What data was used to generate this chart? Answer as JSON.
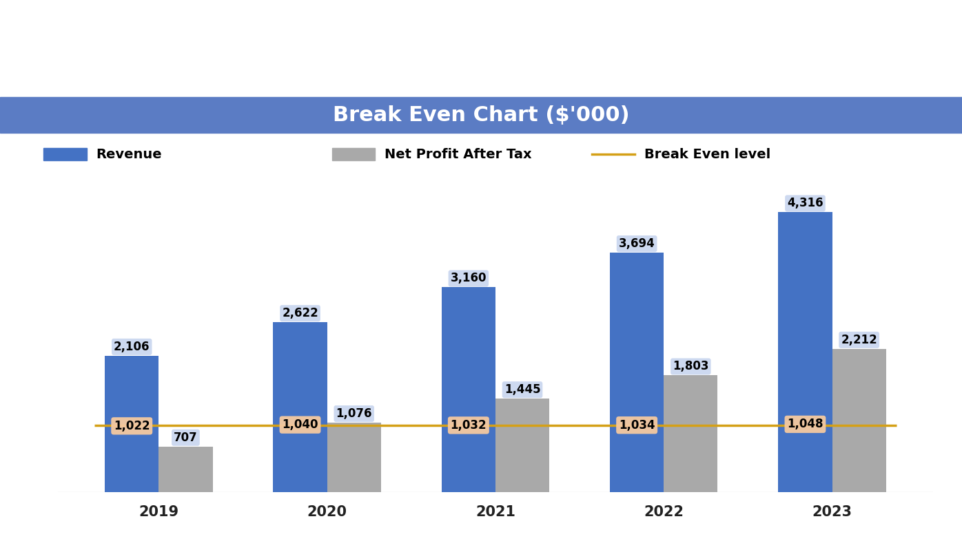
{
  "years": [
    "2019",
    "2020",
    "2021",
    "2022",
    "2023"
  ],
  "revenue": [
    2106,
    2622,
    3160,
    3694,
    4316
  ],
  "net_profit": [
    707,
    1076,
    1445,
    1803,
    2212
  ],
  "break_even": [
    1022,
    1040,
    1032,
    1034,
    1048
  ],
  "bar_color_revenue": "#4472C4",
  "bar_color_profit": "#A9A9A9",
  "break_even_color": "#D4A017",
  "title": "Break Even Chart ($'000)",
  "title_bg_color": "#5B7CC4",
  "title_text_color": "#FFFFFF",
  "legend_revenue": "Revenue",
  "legend_profit": "Net Profit After Tax",
  "legend_break_even": "Break Even level",
  "background_color": "#FFFFFF",
  "bar_width": 0.32,
  "ylim": [
    0,
    5000
  ],
  "title_fontsize": 22,
  "label_fontsize": 12,
  "tick_fontsize": 15,
  "legend_fontsize": 14,
  "be_label_bg": "#F5C9A0",
  "revenue_label_bg": "#C5D3EE"
}
